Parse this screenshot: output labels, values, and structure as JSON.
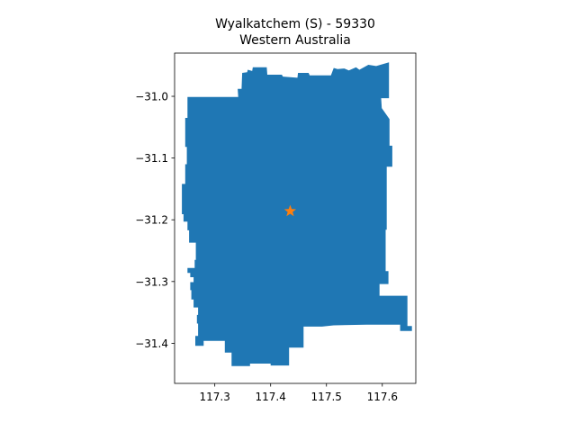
{
  "title": {
    "line1": "Wyalkatchem (S) - 59330",
    "line2": "Western Australia"
  },
  "colors": {
    "region_fill": "#1f77b4",
    "marker": "#ff7f0e",
    "axis": "#000000"
  },
  "chart_data": {
    "type": "map",
    "title": "Wyalkatchem (S) - 59330\nWestern Australia",
    "xlabel": "",
    "ylabel": "",
    "xlim": [
      117.228,
      117.66
    ],
    "ylim": [
      -31.465,
      -30.93
    ],
    "x_ticks": [
      117.3,
      117.4,
      117.5,
      117.6
    ],
    "x_tick_labels": [
      "117.3",
      "117.4",
      "117.5",
      "117.6"
    ],
    "y_ticks": [
      -31.0,
      -31.1,
      -31.2,
      -31.3,
      -31.4
    ],
    "y_tick_labels": [
      "−31.0",
      "−31.1",
      "−31.2",
      "−31.3",
      "−31.4"
    ],
    "grid": false,
    "marker": {
      "shape": "star",
      "x": 117.435,
      "y": -31.186
    },
    "region_boundary": [
      [
        117.251,
        -31.001
      ],
      [
        117.342,
        -31.001
      ],
      [
        117.341,
        -30.988
      ],
      [
        117.348,
        -30.988
      ],
      [
        117.349,
        -30.962
      ],
      [
        117.358,
        -30.961
      ],
      [
        117.359,
        -30.957
      ],
      [
        117.367,
        -30.959
      ],
      [
        117.368,
        -30.953
      ],
      [
        117.393,
        -30.953
      ],
      [
        117.394,
        -30.965
      ],
      [
        117.42,
        -30.965
      ],
      [
        117.422,
        -30.968
      ],
      [
        117.448,
        -30.97
      ],
      [
        117.449,
        -30.962
      ],
      [
        117.468,
        -30.962
      ],
      [
        117.47,
        -30.966
      ],
      [
        117.508,
        -30.966
      ],
      [
        117.513,
        -30.954
      ],
      [
        117.52,
        -30.956
      ],
      [
        117.532,
        -30.955
      ],
      [
        117.54,
        -30.958
      ],
      [
        117.553,
        -30.953
      ],
      [
        117.559,
        -30.957
      ],
      [
        117.575,
        -30.949
      ],
      [
        117.589,
        -30.951
      ],
      [
        117.612,
        -30.945
      ],
      [
        117.612,
        -31.003
      ],
      [
        117.598,
        -31.003
      ],
      [
        117.599,
        -31.019
      ],
      [
        117.613,
        -31.037
      ],
      [
        117.613,
        -31.08
      ],
      [
        117.618,
        -31.08
      ],
      [
        117.618,
        -31.114
      ],
      [
        117.608,
        -31.114
      ],
      [
        117.608,
        -31.216
      ],
      [
        117.606,
        -31.216
      ],
      [
        117.606,
        -31.283
      ],
      [
        117.611,
        -31.283
      ],
      [
        117.611,
        -31.304
      ],
      [
        117.595,
        -31.304
      ],
      [
        117.595,
        -31.323
      ],
      [
        117.613,
        -31.323
      ],
      [
        117.645,
        -31.323
      ],
      [
        117.645,
        -31.372
      ],
      [
        117.653,
        -31.372
      ],
      [
        117.653,
        -31.38
      ],
      [
        117.632,
        -31.38
      ],
      [
        117.632,
        -31.37
      ],
      [
        117.572,
        -31.37
      ],
      [
        117.513,
        -31.371
      ],
      [
        117.492,
        -31.373
      ],
      [
        117.459,
        -31.373
      ],
      [
        117.459,
        -31.407
      ],
      [
        117.433,
        -31.407
      ],
      [
        117.433,
        -31.436
      ],
      [
        117.4,
        -31.436
      ],
      [
        117.4,
        -31.433
      ],
      [
        117.363,
        -31.433
      ],
      [
        117.363,
        -31.437
      ],
      [
        117.33,
        -31.437
      ],
      [
        117.33,
        -31.415
      ],
      [
        117.318,
        -31.415
      ],
      [
        117.318,
        -31.396
      ],
      [
        117.28,
        -31.396
      ],
      [
        117.28,
        -31.404
      ],
      [
        117.265,
        -31.404
      ],
      [
        117.265,
        -31.388
      ],
      [
        117.27,
        -31.388
      ],
      [
        117.27,
        -31.368
      ],
      [
        117.268,
        -31.368
      ],
      [
        117.268,
        -31.354
      ],
      [
        117.27,
        -31.354
      ],
      [
        117.27,
        -31.342
      ],
      [
        117.262,
        -31.342
      ],
      [
        117.262,
        -31.329
      ],
      [
        117.258,
        -31.329
      ],
      [
        117.258,
        -31.314
      ],
      [
        117.256,
        -31.314
      ],
      [
        117.256,
        -31.301
      ],
      [
        117.262,
        -31.301
      ],
      [
        117.262,
        -31.293
      ],
      [
        117.256,
        -31.293
      ],
      [
        117.256,
        -31.286
      ],
      [
        117.251,
        -31.286
      ],
      [
        117.251,
        -31.278
      ],
      [
        117.264,
        -31.278
      ],
      [
        117.264,
        -31.265
      ],
      [
        117.266,
        -31.265
      ],
      [
        117.266,
        -31.237
      ],
      [
        117.254,
        -31.237
      ],
      [
        117.254,
        -31.217
      ],
      [
        117.251,
        -31.217
      ],
      [
        117.251,
        -31.203
      ],
      [
        117.244,
        -31.203
      ],
      [
        117.244,
        -31.191
      ],
      [
        117.241,
        -31.191
      ],
      [
        117.241,
        -31.142
      ],
      [
        117.247,
        -31.142
      ],
      [
        117.247,
        -31.11
      ],
      [
        117.25,
        -31.11
      ],
      [
        117.25,
        -31.082
      ],
      [
        117.247,
        -31.082
      ],
      [
        117.247,
        -31.035
      ],
      [
        117.251,
        -31.035
      ]
    ]
  }
}
